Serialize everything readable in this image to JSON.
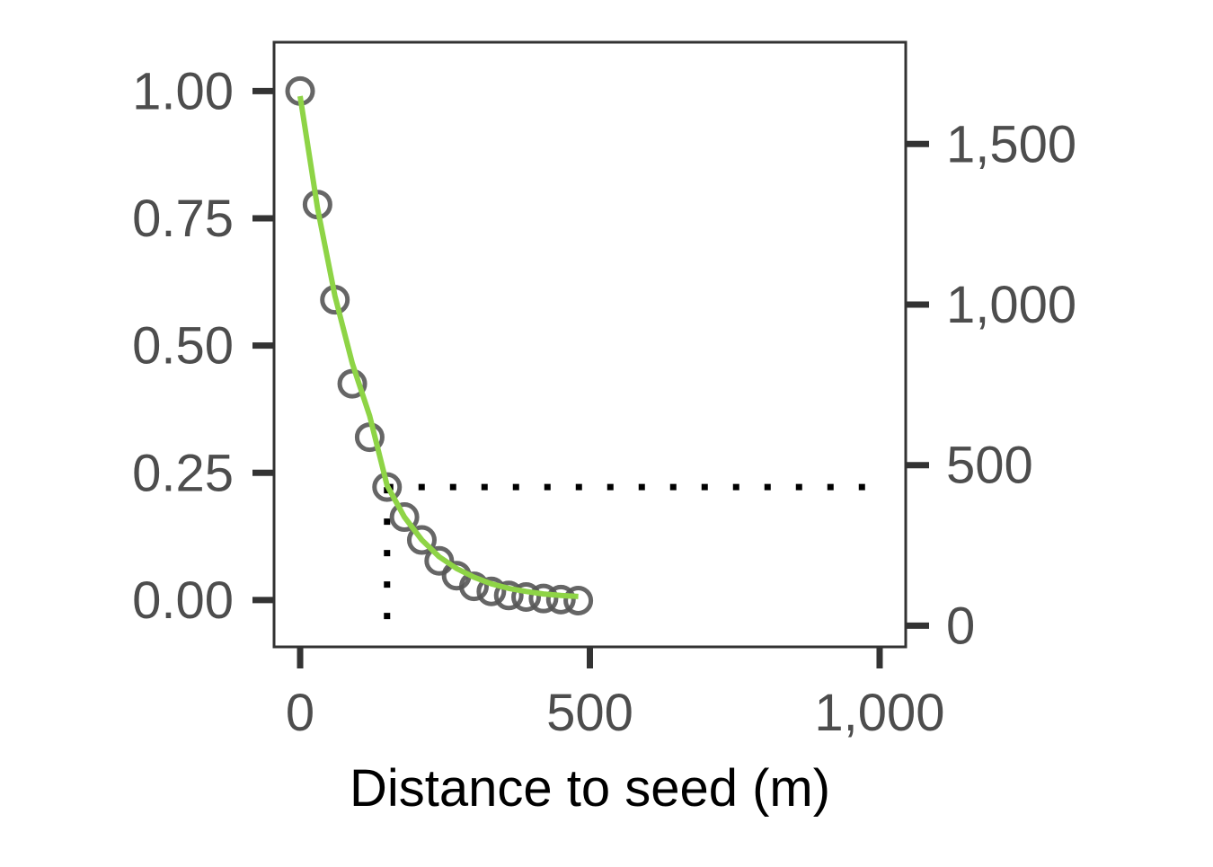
{
  "chart_data": {
    "type": "scatter",
    "title": "",
    "xlabel": "Distance to seed (m)",
    "ylabel": "",
    "y2label": "",
    "xlim": [
      -45,
      1045
    ],
    "ylim": [
      -0.092,
      1.096
    ],
    "y2lim": [
      -66,
      1817
    ],
    "x_ticks": [
      0,
      500,
      1000
    ],
    "x_tick_labels": [
      "0",
      "500",
      "1,000"
    ],
    "y_ticks": [
      0,
      0.25,
      0.5,
      0.75,
      1.0
    ],
    "y_tick_labels": [
      "0.00",
      "0.25",
      "0.50",
      "0.75",
      "1.00"
    ],
    "y2_ticks": [
      0,
      500,
      1000,
      1500
    ],
    "y2_tick_labels": [
      "0",
      "500",
      "1,000",
      "1,500"
    ],
    "grid": false,
    "legend": "none",
    "series": [
      {
        "kind": "points",
        "marker": "open-circle",
        "color": "#555555",
        "x": [
          0,
          30,
          60,
          90,
          120,
          150,
          180,
          210,
          240,
          270,
          300,
          330,
          360,
          390,
          420,
          450,
          480
        ],
        "y": [
          1.0,
          0.777,
          0.59,
          0.425,
          0.32,
          0.222,
          0.163,
          0.118,
          0.077,
          0.048,
          0.027,
          0.017,
          0.009,
          0.006,
          0.003,
          0.001,
          -0.001
        ]
      },
      {
        "kind": "fitted-line",
        "color": "#8ed446",
        "x": [
          0,
          30,
          60,
          90,
          120,
          150,
          180,
          210,
          240,
          270,
          300,
          330,
          360,
          390,
          420,
          450,
          480
        ],
        "y": [
          0.99,
          0.77,
          0.598,
          0.465,
          0.362,
          0.225,
          0.163,
          0.118,
          0.085,
          0.062,
          0.045,
          0.032,
          0.023,
          0.017,
          0.012,
          0.009,
          0.007
        ]
      }
    ],
    "reference_lines": {
      "style": "dotted",
      "color": "#000000",
      "x": 150,
      "y": 0.222,
      "x_from": 150,
      "x_to": 1000
    }
  }
}
